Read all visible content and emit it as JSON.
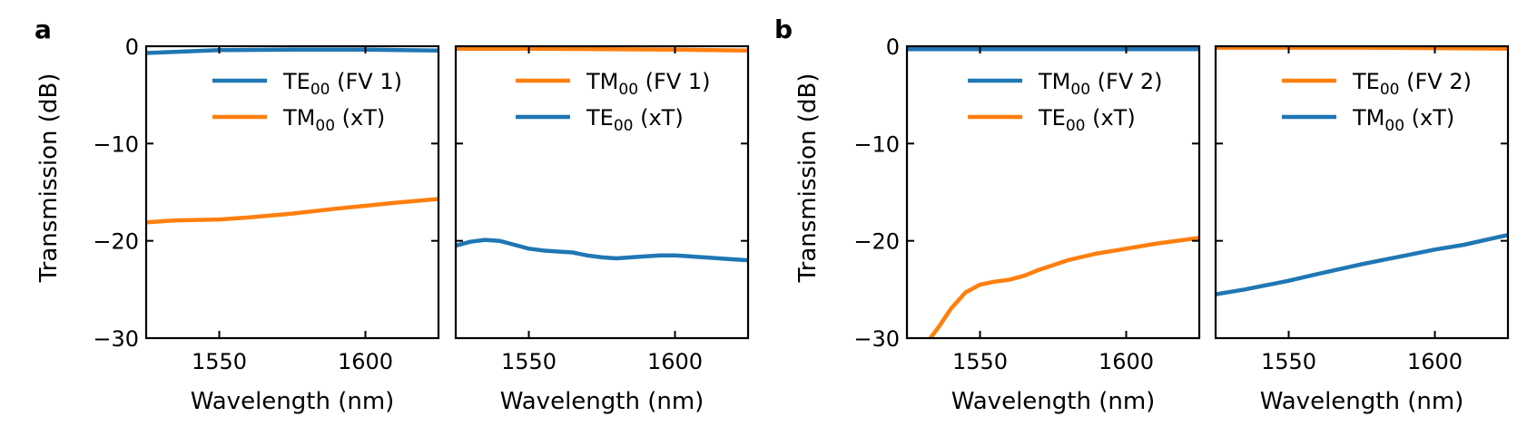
{
  "colors": {
    "blue": "#1f77b4",
    "orange": "#ff7f0e"
  },
  "panels": [
    {
      "letter": "a",
      "ylabel": "Transmission (dB)"
    },
    {
      "letter": "b",
      "ylabel": "Transmission (dB)"
    }
  ],
  "chart_data": [
    {
      "type": "line",
      "panel": "a",
      "xlabel": "Wavelength (nm)",
      "ylabel": "Transmission (dB)",
      "xlim": [
        1525,
        1625
      ],
      "ylim": [
        -30,
        0
      ],
      "xticks": [
        1550,
        1600
      ],
      "yticks": [
        0,
        -10,
        -20,
        -30
      ],
      "show_yticklabels": true,
      "series": [
        {
          "name": "TE00 (FV 1)",
          "mode": "TE",
          "sub": "00",
          "desc": "(FV 1)",
          "color": "#1f77b4",
          "x": [
            1525,
            1550,
            1575,
            1600,
            1625
          ],
          "y": [
            -0.7,
            -0.4,
            -0.35,
            -0.35,
            -0.45
          ]
        },
        {
          "name": "TM00 (xT)",
          "mode": "TM",
          "sub": "00",
          "desc": "(xT)",
          "color": "#ff7f0e",
          "x": [
            1525,
            1535,
            1550,
            1560,
            1575,
            1590,
            1600,
            1610,
            1625
          ],
          "y": [
            -18.1,
            -17.9,
            -17.8,
            -17.6,
            -17.2,
            -16.7,
            -16.4,
            -16.1,
            -15.7
          ]
        }
      ]
    },
    {
      "type": "line",
      "panel": "a",
      "xlabel": "Wavelength (nm)",
      "ylabel": "",
      "xlim": [
        1525,
        1625
      ],
      "ylim": [
        -30,
        0
      ],
      "xticks": [
        1550,
        1600
      ],
      "yticks": [
        0,
        -10,
        -20,
        -30
      ],
      "show_yticklabels": false,
      "series": [
        {
          "name": "TM00 (FV 1)",
          "mode": "TM",
          "sub": "00",
          "desc": "(FV 1)",
          "color": "#ff7f0e",
          "x": [
            1525,
            1550,
            1575,
            1600,
            1625
          ],
          "y": [
            -0.25,
            -0.25,
            -0.3,
            -0.35,
            -0.45
          ]
        },
        {
          "name": "TE00 (xT)",
          "mode": "TE",
          "sub": "00",
          "desc": "(xT)",
          "color": "#1f77b4",
          "x": [
            1525,
            1530,
            1535,
            1540,
            1545,
            1550,
            1555,
            1560,
            1565,
            1570,
            1575,
            1580,
            1585,
            1590,
            1595,
            1600,
            1605,
            1610,
            1615,
            1620,
            1625
          ],
          "y": [
            -20.5,
            -20.1,
            -19.9,
            -20.0,
            -20.4,
            -20.8,
            -21.0,
            -21.1,
            -21.2,
            -21.5,
            -21.7,
            -21.8,
            -21.7,
            -21.6,
            -21.5,
            -21.5,
            -21.6,
            -21.7,
            -21.8,
            -21.9,
            -22.0
          ]
        }
      ]
    },
    {
      "type": "line",
      "panel": "b",
      "xlabel": "Wavelength (nm)",
      "ylabel": "Transmission (dB)",
      "xlim": [
        1525,
        1625
      ],
      "ylim": [
        -30,
        0
      ],
      "xticks": [
        1550,
        1600
      ],
      "yticks": [
        0,
        -10,
        -20,
        -30
      ],
      "show_yticklabels": true,
      "series": [
        {
          "name": "TM00 (FV 2)",
          "mode": "TM",
          "sub": "00",
          "desc": "(FV 2)",
          "color": "#1f77b4",
          "x": [
            1525,
            1550,
            1575,
            1600,
            1625
          ],
          "y": [
            -0.3,
            -0.3,
            -0.3,
            -0.3,
            -0.3
          ]
        },
        {
          "name": "TE00 (xT)",
          "mode": "TE",
          "sub": "00",
          "desc": "(xT)",
          "color": "#ff7f0e",
          "x": [
            1533,
            1536,
            1540,
            1545,
            1550,
            1555,
            1560,
            1565,
            1570,
            1575,
            1580,
            1590,
            1600,
            1610,
            1625
          ],
          "y": [
            -30.0,
            -28.8,
            -27.0,
            -25.3,
            -24.5,
            -24.2,
            -24.0,
            -23.6,
            -23.0,
            -22.5,
            -22.0,
            -21.3,
            -20.8,
            -20.3,
            -19.7
          ]
        }
      ]
    },
    {
      "type": "line",
      "panel": "b",
      "xlabel": "Wavelength (nm)",
      "ylabel": "",
      "xlim": [
        1525,
        1625
      ],
      "ylim": [
        -30,
        0
      ],
      "xticks": [
        1550,
        1600
      ],
      "yticks": [
        0,
        -10,
        -20,
        -30
      ],
      "show_yticklabels": false,
      "series": [
        {
          "name": "TE00 (FV 2)",
          "mode": "TE",
          "sub": "00",
          "desc": "(FV 2)",
          "color": "#ff7f0e",
          "x": [
            1525,
            1550,
            1575,
            1600,
            1625
          ],
          "y": [
            -0.15,
            -0.15,
            -0.15,
            -0.2,
            -0.25
          ]
        },
        {
          "name": "TM00 (xT)",
          "mode": "TM",
          "sub": "00",
          "desc": "(xT)",
          "color": "#1f77b4",
          "x": [
            1525,
            1535,
            1545,
            1550,
            1560,
            1575,
            1590,
            1600,
            1610,
            1625
          ],
          "y": [
            -25.5,
            -25.0,
            -24.4,
            -24.1,
            -23.4,
            -22.4,
            -21.5,
            -20.9,
            -20.4,
            -19.4
          ]
        }
      ]
    }
  ]
}
